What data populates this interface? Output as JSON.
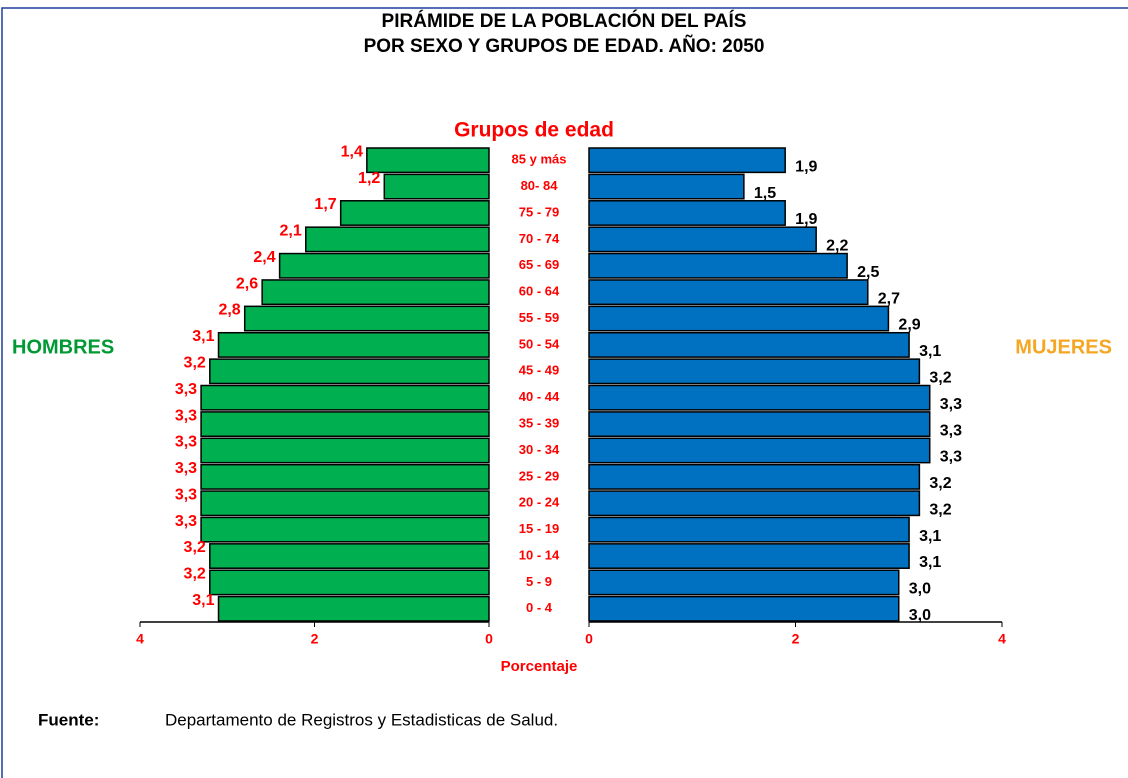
{
  "chart_data": {
    "type": "pyramid",
    "title": [
      "PIRÁMIDE DE LA POBLACIÓN DEL PAÍS",
      "POR SEXO Y GRUPOS DE EDAD. AÑO:  2050"
    ],
    "category_axis_label": "Grupos de edad",
    "x_axis_label": "Porcentaje",
    "categories": [
      "85 y más",
      "80- 84",
      "75 - 79",
      "70 - 74",
      "65 - 69",
      "60 - 64",
      "55 - 59",
      "50 - 54",
      "45 - 49",
      "40 - 44",
      "35 - 39",
      "30 - 34",
      "25 - 29",
      "20 - 24",
      "15 - 19",
      "10 - 14",
      "5 - 9",
      "0 - 4"
    ],
    "series": [
      {
        "name": "HOMBRES",
        "color": "#00b050",
        "label_color": "#ff0000",
        "name_color": "#009933",
        "values": [
          1.4,
          1.2,
          1.7,
          2.1,
          2.4,
          2.6,
          2.8,
          3.1,
          3.2,
          3.3,
          3.3,
          3.3,
          3.3,
          3.3,
          3.3,
          3.2,
          3.2,
          3.1
        ],
        "value_labels": [
          "1,4",
          "1,2",
          "1,7",
          "2,1",
          "2,4",
          "2,6",
          "2,8",
          "3,1",
          "3,2",
          "3,3",
          "3,3",
          "3,3",
          "3,3",
          "3,3",
          "3,3",
          "3,2",
          "3,2",
          "3,1"
        ]
      },
      {
        "name": "MUJERES",
        "color": "#0070c0",
        "label_color": "#000000",
        "name_color": "#f5a623",
        "values": [
          1.9,
          1.5,
          1.9,
          2.2,
          2.5,
          2.7,
          2.9,
          3.1,
          3.2,
          3.3,
          3.3,
          3.3,
          3.2,
          3.2,
          3.1,
          3.1,
          3.0,
          3.0
        ],
        "value_labels": [
          "1,9",
          "1,5",
          "1,9",
          "2,2",
          "2,5",
          "2,7",
          "2,9",
          "3,1",
          "3,2",
          "3,3",
          "3,3",
          "3,3",
          "3,2",
          "3,2",
          "3,1",
          "3,1",
          "3,0",
          "3,0"
        ]
      }
    ],
    "xlim": [
      0,
      4
    ],
    "xticks": [
      0,
      2,
      4
    ],
    "source": {
      "label": "Fuente:",
      "text": "Departamento de Registros y Estadisticas de Salud."
    }
  }
}
